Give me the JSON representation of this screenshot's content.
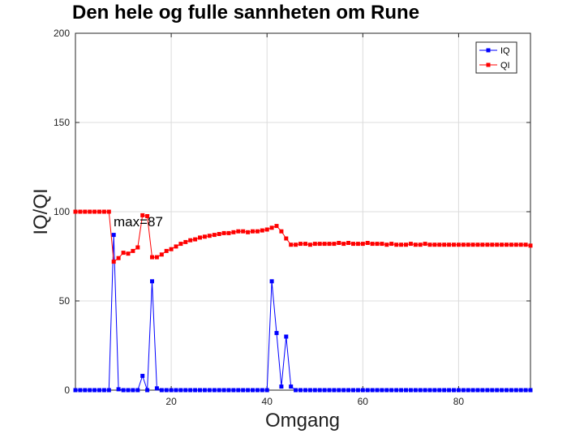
{
  "chart_data": {
    "type": "line",
    "title": "Den hele og fulle sannheten om Rune",
    "xlabel": "Omgang",
    "ylabel": "IQ/QI",
    "xlim": [
      0,
      95
    ],
    "ylim": [
      0,
      200
    ],
    "xticks": [
      20,
      40,
      60,
      80
    ],
    "yticks": [
      0,
      50,
      100,
      150,
      200
    ],
    "grid": true,
    "legend_position": "top-right",
    "annotation": {
      "text": "max=87",
      "x": 8,
      "y": 92
    },
    "x": [
      0,
      1,
      2,
      3,
      4,
      5,
      6,
      7,
      8,
      9,
      10,
      11,
      12,
      13,
      14,
      15,
      16,
      17,
      18,
      19,
      20,
      21,
      22,
      23,
      24,
      25,
      26,
      27,
      28,
      29,
      30,
      31,
      32,
      33,
      34,
      35,
      36,
      37,
      38,
      39,
      40,
      41,
      42,
      43,
      44,
      45,
      46,
      47,
      48,
      49,
      50,
      51,
      52,
      53,
      54,
      55,
      56,
      57,
      58,
      59,
      60,
      61,
      62,
      63,
      64,
      65,
      66,
      67,
      68,
      69,
      70,
      71,
      72,
      73,
      74,
      75,
      76,
      77,
      78,
      79,
      80,
      81,
      82,
      83,
      84,
      85,
      86,
      87,
      88,
      89,
      90,
      91,
      92,
      93,
      94,
      95
    ],
    "series": [
      {
        "name": "IQ",
        "color": "#0000ff",
        "values": [
          0,
          0,
          0,
          0,
          0,
          0,
          0,
          0,
          87,
          0.5,
          0,
          0,
          0,
          0,
          8,
          0,
          61,
          1,
          0,
          0,
          0,
          0,
          0,
          0,
          0,
          0,
          0,
          0,
          0,
          0,
          0,
          0,
          0,
          0,
          0,
          0,
          0,
          0,
          0,
          0,
          0,
          61,
          32,
          2,
          30,
          2,
          0,
          0,
          0,
          0,
          0,
          0,
          0,
          0,
          0,
          0,
          0,
          0,
          0,
          0,
          0,
          0,
          0,
          0,
          0,
          0,
          0,
          0,
          0,
          0,
          0,
          0,
          0,
          0,
          0,
          0,
          0,
          0,
          0,
          0,
          0,
          0,
          0,
          0,
          0,
          0,
          0,
          0,
          0,
          0,
          0,
          0,
          0,
          0,
          0,
          0
        ]
      },
      {
        "name": "QI",
        "color": "#ff0000",
        "values": [
          100,
          100,
          100,
          100,
          100,
          100,
          100,
          100,
          72,
          74,
          77,
          76.5,
          78,
          80,
          98,
          97.5,
          74.5,
          74.5,
          76,
          78,
          79,
          80.5,
          82,
          83,
          84,
          84.5,
          85.5,
          86,
          86.5,
          87,
          87.5,
          88,
          88,
          88.5,
          89,
          89,
          88.5,
          89,
          89,
          89.5,
          90,
          91,
          92,
          89,
          85,
          81.5,
          81.5,
          82,
          82,
          81.5,
          82,
          82,
          82,
          82,
          82,
          82.5,
          82,
          82.5,
          82,
          82,
          82,
          82.5,
          82,
          82,
          82,
          81.5,
          82,
          81.5,
          81.5,
          81.5,
          82,
          81.5,
          81.5,
          82,
          81.5,
          81.5,
          81.5,
          81.5,
          81.5,
          81.5,
          81.5,
          81.5,
          81.5,
          81.5,
          81.5,
          81.5,
          81.5,
          81.5,
          81.5,
          81.5,
          81.5,
          81.5,
          81.5,
          81.5,
          81.5,
          81
        ]
      }
    ]
  }
}
